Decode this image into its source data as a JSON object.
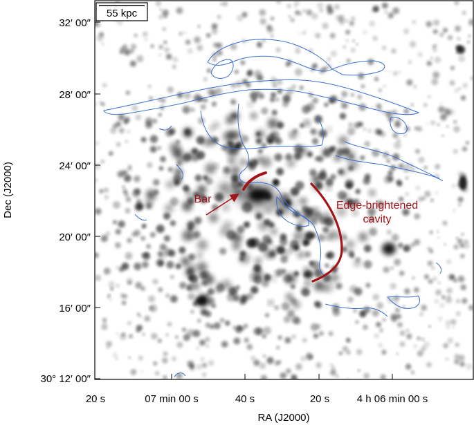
{
  "scale_bar": {
    "label": "55 kpc"
  },
  "y_axis": {
    "label": "Dec (J2000)",
    "ticks": [
      "32′ 00″",
      "28′ 00″",
      "24′ 00″",
      "20′ 00″",
      "16′ 00″",
      "30° 12′ 00″"
    ]
  },
  "x_axis": {
    "label": "RA (J2000)",
    "ticks": [
      "20 s",
      "07 min 00 s",
      "40 s",
      "20 s",
      "4 h 06 min 00 s"
    ]
  },
  "annotations": {
    "bar": "Bar",
    "cavity_line1": "Edge-brightened",
    "cavity_line2": "cavity"
  },
  "colors": {
    "annotation": "#a31419",
    "contour": "#3a6fd0",
    "blob": "#000000"
  }
}
